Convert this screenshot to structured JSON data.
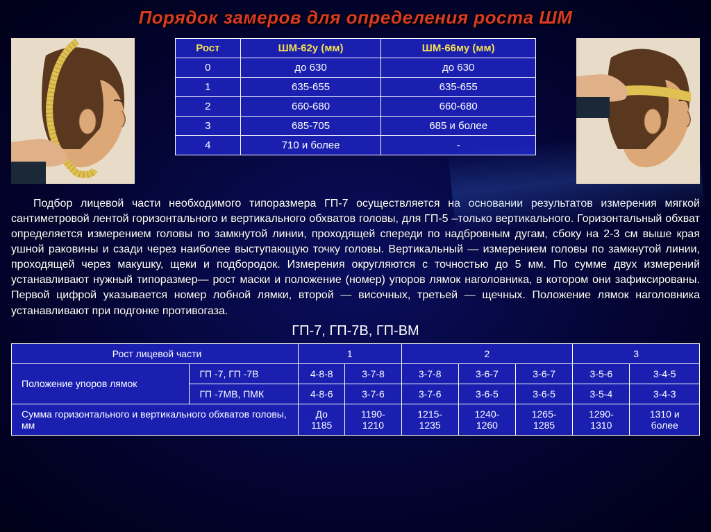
{
  "title": "Порядок замеров для определения роста ШМ",
  "table1": {
    "headers": [
      "Рост",
      "ШМ-62у (мм)",
      "ШМ-66му (мм)"
    ],
    "rows": [
      [
        "0",
        "до 630",
        "до 630"
      ],
      [
        "1",
        "635-655",
        "635-655"
      ],
      [
        "2",
        "660-680",
        "660-680"
      ],
      [
        "3",
        "685-705",
        "685 и более"
      ],
      [
        "4",
        "710 и более",
        "-"
      ]
    ]
  },
  "paragraph": "Подбор лицевой части необходимого типоразмера ГП-7 осуществляется на основании результатов измерения мягкой сантиметровой лентой горизонтального и вертикального обхватов головы, для ГП-5 –только вертикального. Горизонтальный обхват определяется измерением головы по замкнутой линии, проходящей спереди по надбровным дугам, сбоку на 2-3 см выше края ушной раковины и сзади через наиболее выступающую точку головы. Вертикальный — измерением головы по замкнутой линии, проходящей через макушку, щеки и подбородок. Измерения округляются с точностью до 5 мм. По сумме двух измерений устанавливают нужный типоразмер— рост маски и положение (номер) упоров лямок наголовника, в котором они зафиксированы. Первой цифрой указывается номер лобной лямки, второй — височных, третьей — щечных. Положение лямок наголовника устанавливают при подгонке противогаза.",
  "subtitle": "ГП-7, ГП-7В, ГП-ВМ",
  "table2": {
    "row_face_label": "Рост лицевой части",
    "row_face_values": [
      "1",
      "2",
      "3"
    ],
    "row_pos_label": "Положение упоров лямок",
    "row_pos_a_label": "ГП -7,   ГП -7В",
    "row_pos_a": [
      "4-8-8",
      "3-7-8",
      "3-7-8",
      "3-6-7",
      "3-6-7",
      "3-5-6",
      "3-4-5"
    ],
    "row_pos_b_label": "ГП -7МВ, ПМК",
    "row_pos_b": [
      "4-8-6",
      "3-7-6",
      "3-7-6",
      "3-6-5",
      "3-6-5",
      "3-5-4",
      "3-4-3"
    ],
    "row_sum_label": "Сумма горизонтального и вертикального обхватов головы, мм",
    "row_sum": [
      "До 1185",
      "1190-1210",
      "1215-1235",
      "1240-1260",
      "1265-1285",
      "1290-1310",
      "1310 и более"
    ]
  },
  "colors": {
    "title": "#d83a2a",
    "table_bg": "#1a1fb0",
    "header_text": "#f5e050",
    "border": "#ffffff",
    "bg_center": "#0a0e5e",
    "bg_edge": "#000018"
  },
  "head_illustration": {
    "bg": "#e8dcc8",
    "skin": "#d8a67a",
    "hair": "#5a3820",
    "tape": "#e0c050",
    "sleeve": "#1a2838"
  }
}
